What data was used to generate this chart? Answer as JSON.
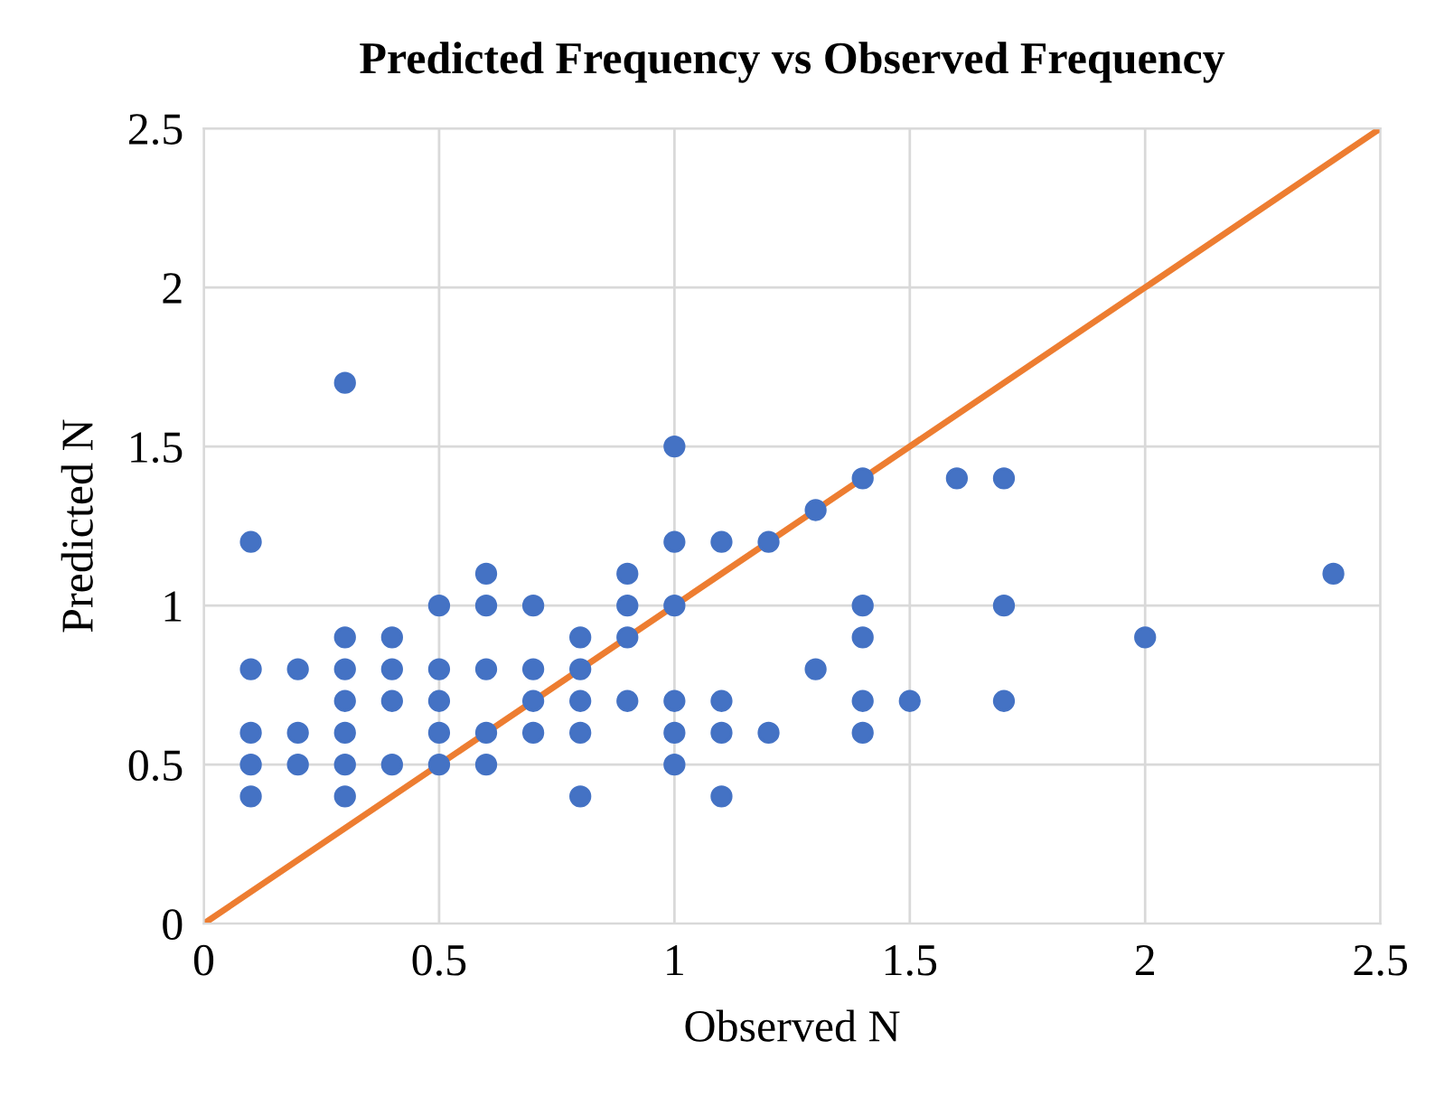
{
  "chart_data": {
    "type": "scatter",
    "title": "Predicted Frequency vs Observed Frequency",
    "xlabel": "Observed N",
    "ylabel": "Predicted N",
    "xlim": [
      0,
      2.5
    ],
    "ylim": [
      0,
      2.5
    ],
    "xticks": [
      0,
      0.5,
      1,
      1.5,
      2,
      2.5
    ],
    "yticks": [
      0,
      0.5,
      1,
      1.5,
      2,
      2.5
    ],
    "grid": true,
    "marker": "circle",
    "series": [
      {
        "color": "#4472c4",
        "x": [
          0.1,
          0.1,
          0.1,
          0.1,
          0.1,
          0.2,
          0.2,
          0.2,
          0.3,
          0.3,
          0.3,
          0.3,
          0.3,
          0.3,
          0.3,
          0.4,
          0.4,
          0.4,
          0.4,
          0.5,
          0.5,
          0.5,
          0.5,
          0.5,
          0.6,
          0.6,
          0.6,
          0.6,
          0.6,
          0.7,
          0.7,
          0.7,
          0.7,
          0.8,
          0.8,
          0.8,
          0.8,
          0.8,
          0.9,
          0.9,
          0.9,
          0.9,
          1.0,
          1.0,
          1.0,
          1.0,
          1.0,
          1.0,
          1.1,
          1.1,
          1.1,
          1.1,
          1.2,
          1.2,
          1.3,
          1.3,
          1.4,
          1.4,
          1.4,
          1.4,
          1.4,
          1.5,
          1.6,
          1.7,
          1.7,
          1.7,
          2.0,
          2.4
        ],
        "values": [
          1.2,
          0.8,
          0.6,
          0.5,
          0.4,
          0.8,
          0.6,
          0.5,
          1.7,
          0.9,
          0.8,
          0.7,
          0.6,
          0.5,
          0.4,
          0.9,
          0.8,
          0.7,
          0.5,
          1.0,
          0.8,
          0.7,
          0.6,
          0.5,
          1.1,
          1.0,
          0.8,
          0.6,
          0.5,
          1.0,
          0.8,
          0.7,
          0.6,
          0.9,
          0.8,
          0.7,
          0.6,
          0.4,
          1.1,
          1.0,
          0.9,
          0.7,
          1.5,
          1.2,
          1.0,
          0.7,
          0.6,
          0.5,
          1.2,
          0.7,
          0.6,
          0.4,
          1.2,
          0.6,
          1.3,
          0.8,
          1.4,
          1.0,
          0.9,
          0.7,
          0.6,
          0.7,
          1.4,
          1.4,
          1.0,
          0.7,
          0.9,
          1.1
        ]
      },
      {
        "type": "line",
        "color": "#ed7d31",
        "marker": "none",
        "x": [
          0,
          2.5
        ],
        "values": [
          0,
          2.5
        ]
      }
    ]
  }
}
